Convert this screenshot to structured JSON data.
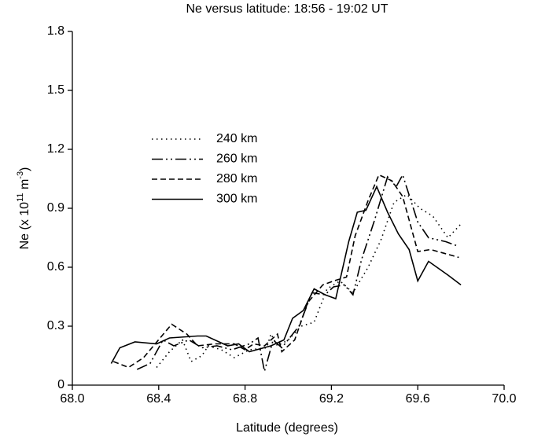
{
  "chart_data": {
    "type": "line",
    "title": "Ne versus latitude: 18:56 - 19:02 UT",
    "xlabel": "Latitude (degrees)",
    "ylabel_parts": [
      "Ne (x 10",
      "11",
      " m",
      "-3",
      ")"
    ],
    "xlim": [
      68.0,
      70.0
    ],
    "xticks": [
      {
        "value": 68.0,
        "label": "68.0"
      },
      68.4,
      68.8,
      69.2,
      69.6,
      {
        "value": 70.0,
        "label": "70.0"
      }
    ],
    "ylim": [
      0,
      1.8
    ],
    "yticks": [
      0,
      0.3,
      0.6,
      0.9,
      1.2,
      1.5,
      1.8
    ],
    "grid": false,
    "legend": "upper-left",
    "series": [
      {
        "name": "240 km",
        "color": "#000000",
        "dash": "1.5 4.5",
        "x": [
          68.39,
          68.45,
          68.51,
          68.55,
          68.6,
          68.63,
          68.69,
          68.75,
          68.82,
          68.9,
          68.92,
          68.95,
          69.0,
          69.06,
          69.12,
          69.18,
          69.24,
          69.3,
          69.37,
          69.43,
          69.49,
          69.55,
          69.61,
          69.67,
          69.74,
          69.8
        ],
        "values": [
          0.09,
          0.17,
          0.23,
          0.12,
          0.15,
          0.2,
          0.18,
          0.14,
          0.18,
          0.19,
          0.26,
          0.2,
          0.23,
          0.3,
          0.32,
          0.49,
          0.53,
          0.47,
          0.6,
          0.74,
          0.93,
          0.97,
          0.9,
          0.86,
          0.75,
          0.82
        ]
      },
      {
        "name": "260 km",
        "color": "#000000",
        "dash": "14 4 2 4 2 4",
        "x": [
          68.3,
          68.36,
          68.42,
          68.47,
          68.54,
          68.6,
          68.67,
          68.74,
          68.82,
          68.86,
          68.89,
          68.93,
          68.97,
          69.05,
          69.11,
          69.17,
          69.21,
          69.26,
          69.3,
          69.34,
          69.4,
          69.46,
          69.5,
          69.53,
          69.6,
          69.65,
          69.73,
          69.78
        ],
        "values": [
          0.08,
          0.11,
          0.23,
          0.2,
          0.23,
          0.19,
          0.2,
          0.18,
          0.21,
          0.24,
          0.07,
          0.23,
          0.19,
          0.3,
          0.47,
          0.46,
          0.5,
          0.51,
          0.46,
          0.64,
          0.84,
          1.06,
          1.01,
          1.07,
          0.83,
          0.75,
          0.73,
          0.71
        ]
      },
      {
        "name": "280 km",
        "color": "#000000",
        "dash": "7 4",
        "x": [
          68.19,
          68.26,
          68.33,
          68.46,
          68.53,
          68.58,
          68.66,
          68.75,
          68.8,
          68.84,
          68.89,
          68.95,
          68.97,
          69.03,
          69.09,
          69.16,
          69.21,
          69.27,
          69.31,
          69.37,
          69.42,
          69.48,
          69.53,
          69.6,
          69.66,
          69.79
        ],
        "values": [
          0.12,
          0.09,
          0.14,
          0.31,
          0.26,
          0.2,
          0.21,
          0.21,
          0.18,
          0.21,
          0.2,
          0.26,
          0.17,
          0.23,
          0.42,
          0.51,
          0.53,
          0.55,
          0.76,
          0.94,
          1.07,
          1.04,
          0.96,
          0.68,
          0.69,
          0.65
        ]
      },
      {
        "name": "300 km",
        "color": "#000000",
        "dash": "none",
        "x": [
          68.18,
          68.22,
          68.29,
          68.39,
          68.45,
          68.58,
          68.62,
          68.72,
          68.77,
          68.82,
          68.92,
          68.98,
          69.02,
          69.07,
          69.12,
          69.17,
          69.22,
          69.28,
          69.32,
          69.36,
          69.41,
          69.46,
          69.51,
          69.56,
          69.6,
          69.65,
          69.74,
          69.8
        ],
        "values": [
          0.11,
          0.19,
          0.22,
          0.21,
          0.24,
          0.25,
          0.25,
          0.2,
          0.21,
          0.17,
          0.2,
          0.23,
          0.34,
          0.38,
          0.49,
          0.46,
          0.44,
          0.73,
          0.88,
          0.89,
          1.01,
          0.88,
          0.77,
          0.69,
          0.53,
          0.63,
          0.56,
          0.51
        ]
      }
    ]
  }
}
